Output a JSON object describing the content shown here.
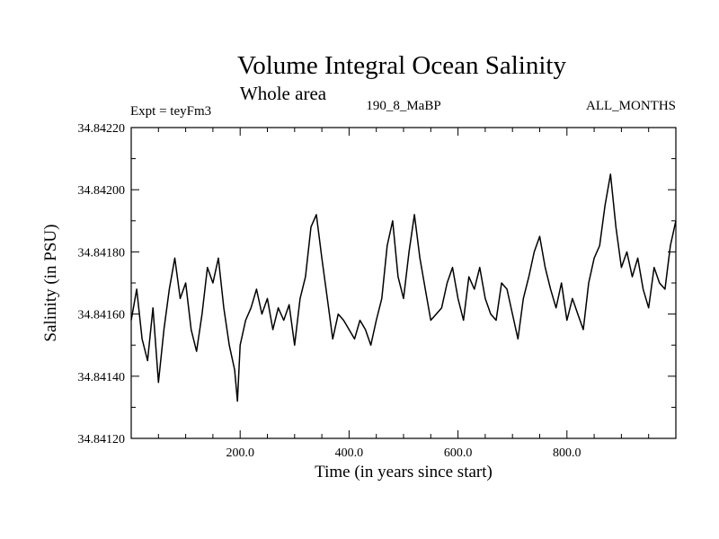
{
  "chart_data": {
    "type": "line",
    "title": "Volume Integral Ocean Salinity",
    "subtitle": "Whole area",
    "annotations": {
      "left": "Expt = teyFm3",
      "center": "190_8_MaBP",
      "right": "ALL_MONTHS"
    },
    "xlabel": "Time (in years since start)",
    "ylabel": "Salinity (in PSU)",
    "xlim": [
      0,
      1000
    ],
    "ylim": [
      34.8412,
      34.8422
    ],
    "xticks": [
      200,
      400,
      600,
      800
    ],
    "xtick_labels": [
      "200.0",
      "400.0",
      "600.0",
      "800.0"
    ],
    "yticks": [
      34.8412,
      34.8414,
      34.8416,
      34.8418,
      34.842,
      34.8422
    ],
    "ytick_labels": [
      "34.84120",
      "34.84140",
      "34.84160",
      "34.84180",
      "34.84200",
      "34.84220"
    ],
    "grid": false,
    "series": [
      {
        "name": "Salinity",
        "x": [
          0,
          10,
          20,
          30,
          40,
          50,
          60,
          70,
          80,
          90,
          100,
          110,
          120,
          130,
          140,
          150,
          160,
          170,
          180,
          190,
          195,
          200,
          210,
          220,
          230,
          240,
          250,
          260,
          270,
          280,
          290,
          300,
          310,
          320,
          330,
          340,
          350,
          360,
          370,
          380,
          390,
          400,
          410,
          420,
          430,
          440,
          450,
          460,
          470,
          480,
          490,
          500,
          510,
          520,
          530,
          540,
          550,
          560,
          570,
          580,
          590,
          600,
          610,
          620,
          630,
          640,
          650,
          660,
          670,
          680,
          690,
          700,
          710,
          720,
          730,
          740,
          750,
          760,
          770,
          780,
          790,
          800,
          810,
          820,
          830,
          840,
          850,
          860,
          870,
          880,
          890,
          900,
          910,
          920,
          930,
          940,
          950,
          960,
          970,
          980,
          990,
          1000
        ],
        "values": [
          34.84158,
          34.84168,
          34.84152,
          34.84145,
          34.84162,
          34.84138,
          34.84155,
          34.84168,
          34.84178,
          34.84165,
          34.8417,
          34.84155,
          34.84148,
          34.8416,
          34.84175,
          34.8417,
          34.84178,
          34.84162,
          34.8415,
          34.84142,
          34.84132,
          34.8415,
          34.84158,
          34.84162,
          34.84168,
          34.8416,
          34.84165,
          34.84155,
          34.84162,
          34.84158,
          34.84163,
          34.8415,
          34.84165,
          34.84172,
          34.84188,
          34.84192,
          34.84178,
          34.84165,
          34.84152,
          34.8416,
          34.84158,
          34.84155,
          34.84152,
          34.84158,
          34.84155,
          34.8415,
          34.84158,
          34.84165,
          34.84182,
          34.8419,
          34.84172,
          34.84165,
          34.8418,
          34.84192,
          34.84178,
          34.84168,
          34.84158,
          34.8416,
          34.84162,
          34.8417,
          34.84175,
          34.84165,
          34.84158,
          34.84172,
          34.84168,
          34.84175,
          34.84165,
          34.8416,
          34.84158,
          34.8417,
          34.84168,
          34.8416,
          34.84152,
          34.84165,
          34.84172,
          34.8418,
          34.84185,
          34.84175,
          34.84168,
          34.84162,
          34.8417,
          34.84158,
          34.84165,
          34.8416,
          34.84155,
          34.8417,
          34.84178,
          34.84182,
          34.84195,
          34.84205,
          34.84188,
          34.84175,
          34.8418,
          34.84172,
          34.84178,
          34.84168,
          34.84162,
          34.84175,
          34.8417,
          34.84168,
          34.84182,
          34.8419
        ]
      }
    ]
  }
}
